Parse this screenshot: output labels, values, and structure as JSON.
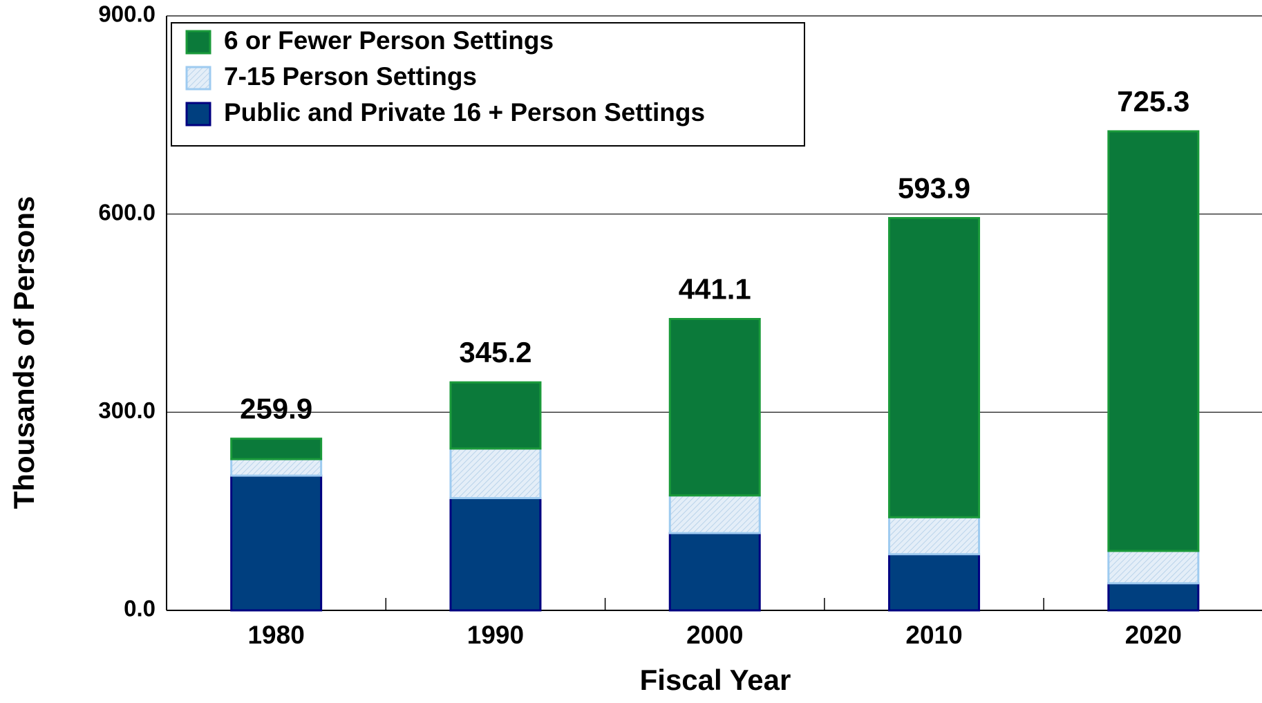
{
  "chart_data": {
    "type": "stacked_bar",
    "x_label": "Fiscal Year",
    "y_label": "Thousands of Persons",
    "categories": [
      "1980",
      "1990",
      "2000",
      "2010",
      "2020"
    ],
    "series": [
      {
        "name": "Public and Private 16 + Person Settings",
        "color": "#003f7f",
        "values": [
          204,
          170,
          117,
          85,
          41
        ]
      },
      {
        "name": "7-15 Person Settings",
        "color": "#dbe9f6",
        "values": [
          25,
          75,
          57,
          56,
          49
        ]
      },
      {
        "name": "6 or Fewer Person Settings",
        "color": "#0b7a3a",
        "values": [
          30.9,
          100.2,
          267.1,
          452.9,
          635.3
        ]
      }
    ],
    "totals": [
      259.9,
      345.2,
      441.1,
      593.9,
      725.3
    ],
    "value_labels": [
      "259.9",
      "345.2",
      "441.1",
      "593.9",
      "725.3"
    ],
    "ylim": [
      0,
      900
    ],
    "yticks": [
      {
        "value": 0,
        "label": "0.0"
      },
      {
        "value": 300,
        "label": "300.0"
      },
      {
        "value": 600,
        "label": "600.0"
      },
      {
        "value": 900,
        "label": "900.0"
      }
    ],
    "grid": true
  }
}
